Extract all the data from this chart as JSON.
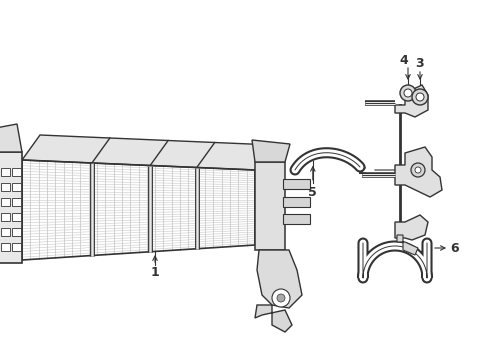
{
  "background_color": "#ffffff",
  "line_color": "#333333",
  "figsize": [
    4.9,
    3.6
  ],
  "dpi": 100,
  "xlim": [
    0,
    490
  ],
  "ylim": [
    0,
    360
  ]
}
